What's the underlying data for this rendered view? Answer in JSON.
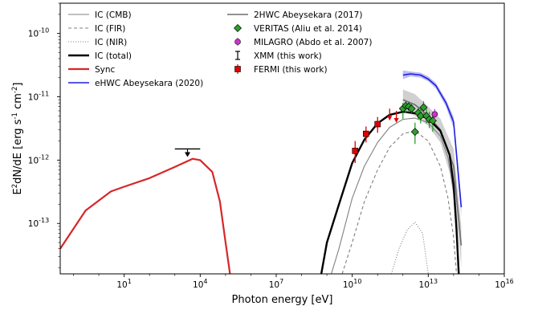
{
  "chart_data": {
    "type": "line",
    "xlabel": "Photon energy [eV]",
    "ylabel": "E^2dN/dE [erg s^-1 cm^-2]",
    "x_scale": "log",
    "y_scale": "log",
    "xlim": [
      0.03,
      1e+16
    ],
    "ylim": [
      1.6e-14,
      3e-10
    ],
    "x_ticks": [
      {
        "value": 10,
        "label": "10^1"
      },
      {
        "value": 10000,
        "label": "10^4"
      },
      {
        "value": 10000000.0,
        "label": "10^7"
      },
      {
        "value": 10000000000.0,
        "label": "10^10"
      },
      {
        "value": 10000000000000.0,
        "label": "10^13"
      },
      {
        "value": 1e+16,
        "label": "10^16"
      }
    ],
    "y_ticks": [
      {
        "value": 1e-13,
        "label": "10^-13"
      },
      {
        "value": 1e-12,
        "label": "10^-12"
      },
      {
        "value": 1e-11,
        "label": "10^-11"
      },
      {
        "value": 1e-10,
        "label": "10^-10"
      }
    ],
    "grid": false,
    "legend_position": "top-left",
    "colors": {
      "ic_cmb": "#808080",
      "ic_fir": "#808080",
      "ic_nir": "#808080",
      "ic_total": "#000000",
      "sync": "#d62728",
      "ehwc": "#1f1fe0",
      "hawc2": "#6e6e6e",
      "veritas": "#2ca02c",
      "milagro": "#cc33cc",
      "xmm": "#000000",
      "fermi": "#e00000"
    },
    "legend": [
      {
        "key": "ic_cmb",
        "label": "IC (CMB)"
      },
      {
        "key": "ic_fir",
        "label": "IC (FIR)"
      },
      {
        "key": "ic_nir",
        "label": "IC (NIR)"
      },
      {
        "key": "ic_total",
        "label": "IC (total)"
      },
      {
        "key": "sync",
        "label": "Sync"
      },
      {
        "key": "ehwc",
        "label": "eHWC Abeysekara (2020)"
      },
      {
        "key": "hawc2",
        "label": "2HWC Abeysekara (2017)"
      },
      {
        "key": "veritas",
        "label": "VERITAS (Aliu et al. 2014)"
      },
      {
        "key": "milagro",
        "label": "MILAGRO (Abdo et al. 2007)"
      },
      {
        "key": "xmm",
        "label": "XMM (this work)"
      },
      {
        "key": "fermi",
        "label": "FERMI (this work)"
      }
    ],
    "series": [
      {
        "key": "sync",
        "x": [
          0.03,
          0.3,
          3,
          10,
          100,
          1000,
          5000,
          10000,
          30000,
          60000,
          100000,
          150000
        ],
        "y": [
          4e-14,
          1.6e-13,
          3.2e-13,
          3.8e-13,
          5.2e-13,
          7.8e-13,
          1.05e-12,
          1e-12,
          6.5e-13,
          2.2e-13,
          5e-14,
          1.6e-14
        ]
      },
      {
        "key": "ic_total",
        "x": [
          600000000.0,
          1000000000.0,
          3000000000.0,
          10000000000.0,
          30000000000.0,
          100000000000.0,
          300000000000.0,
          1000000000000.0,
          3000000000000.0,
          10000000000000.0,
          30000000000000.0,
          70000000000000.0,
          100000000000000.0,
          130000000000000.0,
          160000000000000.0
        ],
        "y": [
          1.6e-14,
          5e-14,
          2e-13,
          9e-13,
          2.1e-12,
          3.8e-12,
          5.2e-12,
          5.8e-12,
          5.5e-12,
          4.5e-12,
          2.9e-12,
          1.2e-12,
          4e-13,
          8e-14,
          1.6e-14
        ]
      },
      {
        "key": "ic_cmb",
        "x": [
          1500000000.0,
          3000000000.0,
          10000000000.0,
          30000000000.0,
          100000000000.0,
          300000000000.0,
          1000000000000.0,
          3000000000000.0,
          10000000000000.0,
          30000000000000.0,
          60000000000000.0,
          100000000000000.0,
          130000000000000.0,
          160000000000000.0
        ],
        "y": [
          1.6e-14,
          4e-14,
          2.5e-13,
          8e-13,
          1.9e-12,
          3.3e-12,
          4.4e-12,
          4.6e-12,
          3.9e-12,
          2.4e-12,
          1.1e-12,
          3e-13,
          7e-14,
          1.6e-14
        ]
      },
      {
        "key": "ic_fir",
        "x": [
          4000000000.0,
          10000000000.0,
          30000000000.0,
          100000000000.0,
          300000000000.0,
          1000000000000.0,
          3000000000000.0,
          10000000000000.0,
          30000000000000.0,
          60000000000000.0,
          100000000000000.0,
          130000000000000.0
        ],
        "y": [
          1.6e-14,
          5e-14,
          2.2e-13,
          7e-13,
          1.6e-12,
          2.6e-12,
          2.9e-12,
          2e-12,
          8e-13,
          2.5e-13,
          6e-14,
          1.6e-14
        ]
      },
      {
        "key": "ic_nir",
        "x": [
          350000000000.0,
          700000000000.0,
          1500000000000.0,
          3000000000000.0,
          6000000000000.0,
          10000000000000.0
        ],
        "y": [
          1.6e-14,
          4e-14,
          8e-14,
          1.05e-13,
          7e-14,
          1.6e-14
        ]
      },
      {
        "key": "ehwc",
        "x": [
          1000000000000.0,
          2000000000000.0,
          5000000000000.0,
          10000000000000.0,
          20000000000000.0,
          50000000000000.0,
          100000000000000.0,
          200000000000000.0
        ],
        "y": [
          2.2e-11,
          2.3e-11,
          2.2e-11,
          1.9e-11,
          1.5e-11,
          8e-12,
          4e-12,
          1.8e-13
        ],
        "band_low": [
          1.9e-11,
          2.1e-11,
          2e-11,
          1.75e-11,
          1.35e-11,
          7e-12,
          3.2e-12,
          1.3e-13
        ],
        "band_high": [
          2.6e-11,
          2.5e-11,
          2.4e-11,
          2.1e-11,
          1.65e-11,
          9e-12,
          4.8e-12,
          2.4e-13
        ]
      },
      {
        "key": "hawc2",
        "x": [
          1000000000000.0,
          3000000000000.0,
          10000000000000.0,
          30000000000000.0,
          100000000000000.0,
          200000000000000.0
        ],
        "y": [
          9e-12,
          7.5e-12,
          5e-12,
          3e-12,
          8e-13,
          4.5e-14
        ],
        "band_low": [
          6e-12,
          5e-12,
          3.5e-12,
          1.9e-12,
          4e-13,
          2e-14
        ],
        "band_high": [
          1.3e-11,
          1.1e-11,
          7e-12,
          4.5e-12,
          1.5e-12,
          9e-14
        ]
      }
    ],
    "points": {
      "veritas": [
        {
          "x": 1000000000000.0,
          "y": 6.5e-12,
          "lo": 4.5e-12,
          "hi": 8e-12
        },
        {
          "x": 1300000000000.0,
          "y": 7.2e-12,
          "lo": 5.5e-12,
          "hi": 8.5e-12
        },
        {
          "x": 1700000000000.0,
          "y": 7e-12,
          "lo": 5.8e-12,
          "hi": 8.5e-12
        },
        {
          "x": 2200000000000.0,
          "y": 6.5e-12,
          "lo": 5.5e-12,
          "hi": 7.8e-12
        },
        {
          "x": 3000000000000.0,
          "y": 2.8e-12,
          "lo": 1.8e-12,
          "hi": 3.9e-12
        },
        {
          "x": 4000000000000.0,
          "y": 5.6e-12,
          "lo": 4.4e-12,
          "hi": 7e-12
        },
        {
          "x": 5000000000000.0,
          "y": 5e-12,
          "lo": 3.8e-12,
          "hi": 6.3e-12
        },
        {
          "x": 6500000000000.0,
          "y": 6.8e-12,
          "lo": 5e-12,
          "hi": 8.5e-12
        },
        {
          "x": 8500000000000.0,
          "y": 5e-12,
          "lo": 3.8e-12,
          "hi": 6.5e-12
        },
        {
          "x": 11000000000000.0,
          "y": 4.4e-12,
          "lo": 3.2e-12,
          "hi": 5.8e-12
        },
        {
          "x": 15000000000000.0,
          "y": 4.2e-12,
          "lo": 2.8e-12,
          "hi": 5.6e-12
        }
      ],
      "milagro": [
        {
          "x": 18000000000000.0,
          "y": 5.3e-12,
          "lo": 4.3e-12,
          "hi": 6.4e-12
        }
      ],
      "fermi": [
        {
          "x": 13000000000.0,
          "y": 1.4e-12,
          "lo": 9e-13,
          "hi": 2e-12
        },
        {
          "x": 35000000000.0,
          "y": 2.6e-12,
          "lo": 1.9e-12,
          "hi": 3.4e-12
        },
        {
          "x": 100000000000.0,
          "y": 3.7e-12,
          "lo": 2.7e-12,
          "hi": 4.8e-12
        }
      ],
      "fermi_upper_limits": [
        {
          "x": 300000000000.0,
          "y": 6.5e-12
        },
        {
          "x": 550000000000.0,
          "y": 6e-12
        }
      ],
      "xmm_upper_limit": {
        "x_min": 1000,
        "x_max": 10000,
        "y": 1.5e-12
      }
    }
  }
}
